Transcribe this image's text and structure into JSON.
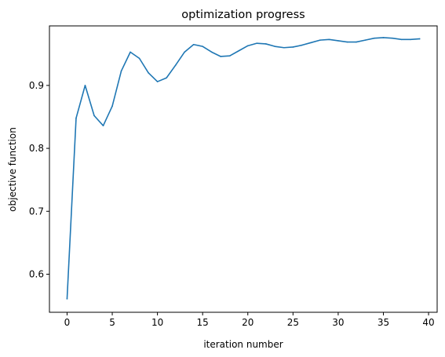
{
  "chart_data": {
    "type": "line",
    "title": "optimization progress",
    "xlabel": "iteration number",
    "ylabel": "objective function",
    "xlim": [
      -1.95,
      40.95
    ],
    "ylim": [
      0.5395,
      0.9946
    ],
    "xticks": [
      0,
      5,
      10,
      15,
      20,
      25,
      30,
      35,
      40
    ],
    "xtick_labels": [
      "0",
      "5",
      "10",
      "15",
      "20",
      "25",
      "30",
      "35",
      "40"
    ],
    "yticks": [
      0.6,
      0.7,
      0.8,
      0.9
    ],
    "ytick_labels": [
      "0.6",
      "0.7",
      "0.8",
      "0.9"
    ],
    "grid": false,
    "legend": "none",
    "series": [
      {
        "color": "#1f77b4",
        "x": [
          0,
          1,
          2,
          3,
          4,
          5,
          6,
          7,
          8,
          9,
          10,
          11,
          12,
          13,
          14,
          15,
          16,
          17,
          18,
          19,
          20,
          21,
          22,
          23,
          24,
          25,
          26,
          27,
          28,
          29,
          30,
          31,
          32,
          33,
          34,
          35,
          36,
          37,
          38,
          39
        ],
        "y": [
          0.561,
          0.848,
          0.9,
          0.852,
          0.836,
          0.867,
          0.923,
          0.953,
          0.943,
          0.92,
          0.906,
          0.912,
          0.932,
          0.953,
          0.965,
          0.962,
          0.953,
          0.946,
          0.947,
          0.955,
          0.963,
          0.967,
          0.966,
          0.962,
          0.96,
          0.961,
          0.964,
          0.968,
          0.972,
          0.973,
          0.971,
          0.969,
          0.969,
          0.972,
          0.975,
          0.976,
          0.975,
          0.973,
          0.973,
          0.974
        ]
      }
    ]
  }
}
